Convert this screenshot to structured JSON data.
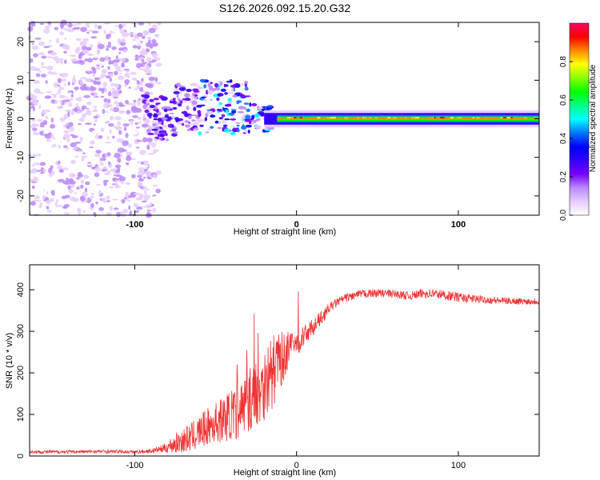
{
  "title": "S126.2026.092.15.20.G32",
  "chart_data": [
    {
      "type": "heatmap",
      "name": "spectrogram",
      "xlabel": "Height of straight line (km)",
      "ylabel": "Frequency (Hz)",
      "xlim": [
        -165,
        150
      ],
      "ylim": [
        -25,
        25
      ],
      "xticks": [
        -100,
        0,
        100
      ],
      "yticks": [
        -20,
        -10,
        0,
        10,
        20
      ],
      "colorbar": {
        "label": "Normalized spectral amplitude",
        "range": [
          0,
          1
        ],
        "ticks": [
          0.0,
          0.2,
          0.4,
          0.6,
          0.8
        ],
        "colors": [
          "#ffffff",
          "#e6ccff",
          "#bb88ff",
          "#7700ff",
          "#3300ff",
          "#0000ff",
          "#0077ff",
          "#00ffff",
          "#00ff88",
          "#00ff00",
          "#88ff00",
          "#ffff00",
          "#ff8800",
          "#ff0000",
          "#ff0066"
        ]
      },
      "regions": [
        {
          "x": [
            -165,
            -95
          ],
          "freq_spread": [
            -25,
            25
          ],
          "amplitude": [
            0.0,
            0.12
          ],
          "description_level": "scattered noise"
        },
        {
          "x": [
            -95,
            -20
          ],
          "freq_spread": [
            -6,
            8
          ],
          "amplitude": [
            0.05,
            0.5
          ]
        },
        {
          "x": [
            -20,
            0
          ],
          "freq_spread": [
            -3,
            3
          ],
          "amplitude": [
            0.2,
            0.9
          ]
        },
        {
          "x": [
            0,
            50
          ],
          "freq_center": 0,
          "freq_halfwidth": 2,
          "peak_amplitude": 0.9
        },
        {
          "x": [
            50,
            150
          ],
          "freq_center": 0,
          "freq_halfwidth": 2,
          "peak_amplitude": 0.7
        }
      ]
    },
    {
      "type": "line",
      "name": "snr",
      "xlabel": "Height of straight line (km)",
      "ylabel": "SNR (10 * v/v)",
      "xlim": [
        -165,
        150
      ],
      "ylim": [
        0,
        460
      ],
      "xticks": [
        -100,
        0,
        100
      ],
      "yticks": [
        0,
        100,
        200,
        300,
        400
      ],
      "color": "#ee3333",
      "series": [
        {
          "name": "SNR",
          "x": [
            -165,
            -140,
            -120,
            -100,
            -90,
            -82,
            -75,
            -65,
            -55,
            -45,
            -35,
            -28,
            -20,
            -15,
            -10,
            -5,
            0,
            5,
            10,
            15,
            20,
            25,
            30,
            40,
            50,
            60,
            70,
            80,
            90,
            100,
            110,
            120,
            130,
            140,
            150
          ],
          "y": [
            10,
            10,
            11,
            10,
            12,
            18,
            30,
            45,
            70,
            90,
            110,
            140,
            175,
            200,
            230,
            255,
            270,
            290,
            310,
            330,
            355,
            370,
            380,
            390,
            392,
            390,
            385,
            392,
            388,
            382,
            378,
            375,
            373,
            372,
            372
          ],
          "noise": [
            4,
            4,
            4,
            4,
            5,
            10,
            25,
            35,
            45,
            55,
            70,
            80,
            90,
            90,
            70,
            45,
            30,
            25,
            20,
            18,
            12,
            10,
            10,
            10,
            10,
            10,
            10,
            12,
            12,
            11,
            10,
            9,
            8,
            8,
            8
          ]
        }
      ]
    }
  ]
}
